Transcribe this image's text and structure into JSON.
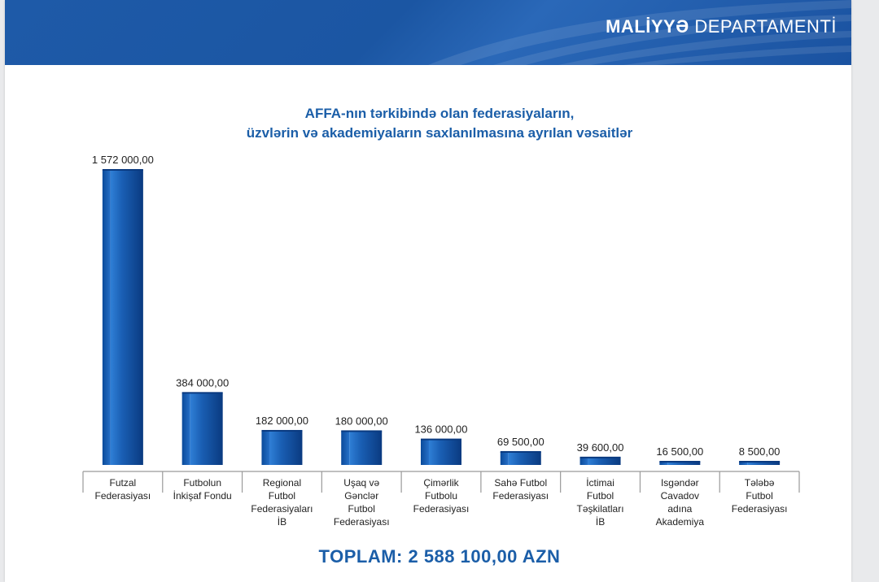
{
  "header": {
    "title_strong": "MALİYYƏ",
    "title_light": " DEPARTAMENTİ",
    "color": "#1e5aa8"
  },
  "footer": {
    "total": "TOPLAM: 2 588 100,00 AZN"
  },
  "colors": {
    "bar_dark": "#0b3f86",
    "bar_light": "#2a78cf",
    "title": "#1b5ea8",
    "axis": "#9a9a9a"
  },
  "chart_data": {
    "type": "bar",
    "title_lines": [
      "AFFA-nın tərkibində olan federasiyaların,",
      "üzvlərin və akademiyaların saxlanılmasına ayrılan vəsaitlər"
    ],
    "categories": [
      [
        "Futzal",
        "Federasiyası"
      ],
      [
        "Futbolun",
        "İnkişaf Fondu"
      ],
      [
        "Regional",
        "Futbol",
        "Federasiyaları",
        "İB"
      ],
      [
        "Uşaq və",
        "Gənclər",
        "Futbol",
        "Federasiyası"
      ],
      [
        "Çimərlik",
        "Futbolu",
        "Federasiyası"
      ],
      [
        "Sahə Futbol",
        "Federasiyası"
      ],
      [
        "İctimai",
        "Futbol",
        "Təşkilatları",
        "İB"
      ],
      [
        "Isgəndər",
        "Cavadov",
        "adına",
        "Akademiya"
      ],
      [
        "Tələbə",
        "Futbol",
        "Federasiyası"
      ]
    ],
    "values": [
      1572000,
      384000,
      182000,
      180000,
      136000,
      69500,
      39600,
      16500,
      8500
    ],
    "value_labels": [
      "1 572 000,00",
      "384 000,00",
      "182 000,00",
      "180 000,00",
      "136 000,00",
      "69 500,00",
      "39 600,00",
      "16 500,00",
      "8 500,00"
    ],
    "grid": false,
    "legend": "none"
  }
}
